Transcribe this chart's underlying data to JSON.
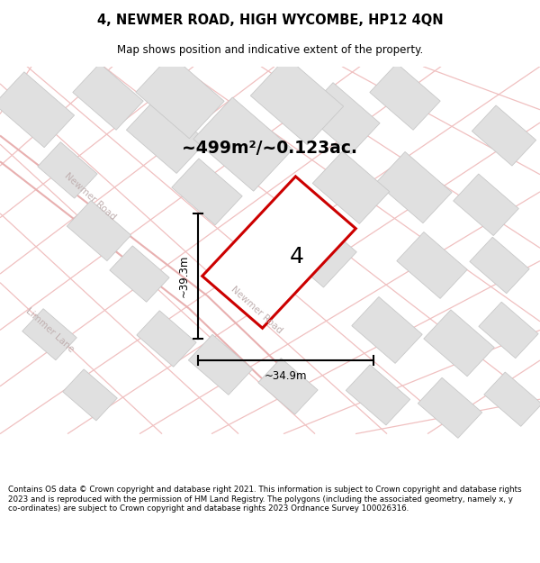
{
  "title_line1": "4, NEWMER ROAD, HIGH WYCOMBE, HP12 4QN",
  "title_line2": "Map shows position and indicative extent of the property.",
  "area_label": "~499m²/~0.123ac.",
  "plot_number": "4",
  "dim_height": "~39.3m",
  "dim_width": "~34.9m",
  "footer_text": "Contains OS data © Crown copyright and database right 2021. This information is subject to Crown copyright and database rights 2023 and is reproduced with the permission of HM Land Registry. The polygons (including the associated geometry, namely x, y co-ordinates) are subject to Crown copyright and database rights 2023 Ordnance Survey 100026316.",
  "map_bg": "#f7f7f7",
  "road_color_pink": "#f0c0c0",
  "road_color_dark": "#d0c0c0",
  "plot_fill": "#ffffff",
  "plot_edge": "#cc0000",
  "building_fill": "#e0e0e0",
  "building_edge": "#c8c8c8",
  "road_outline": "#d8c8c8",
  "text_road": "#c0b0b0"
}
